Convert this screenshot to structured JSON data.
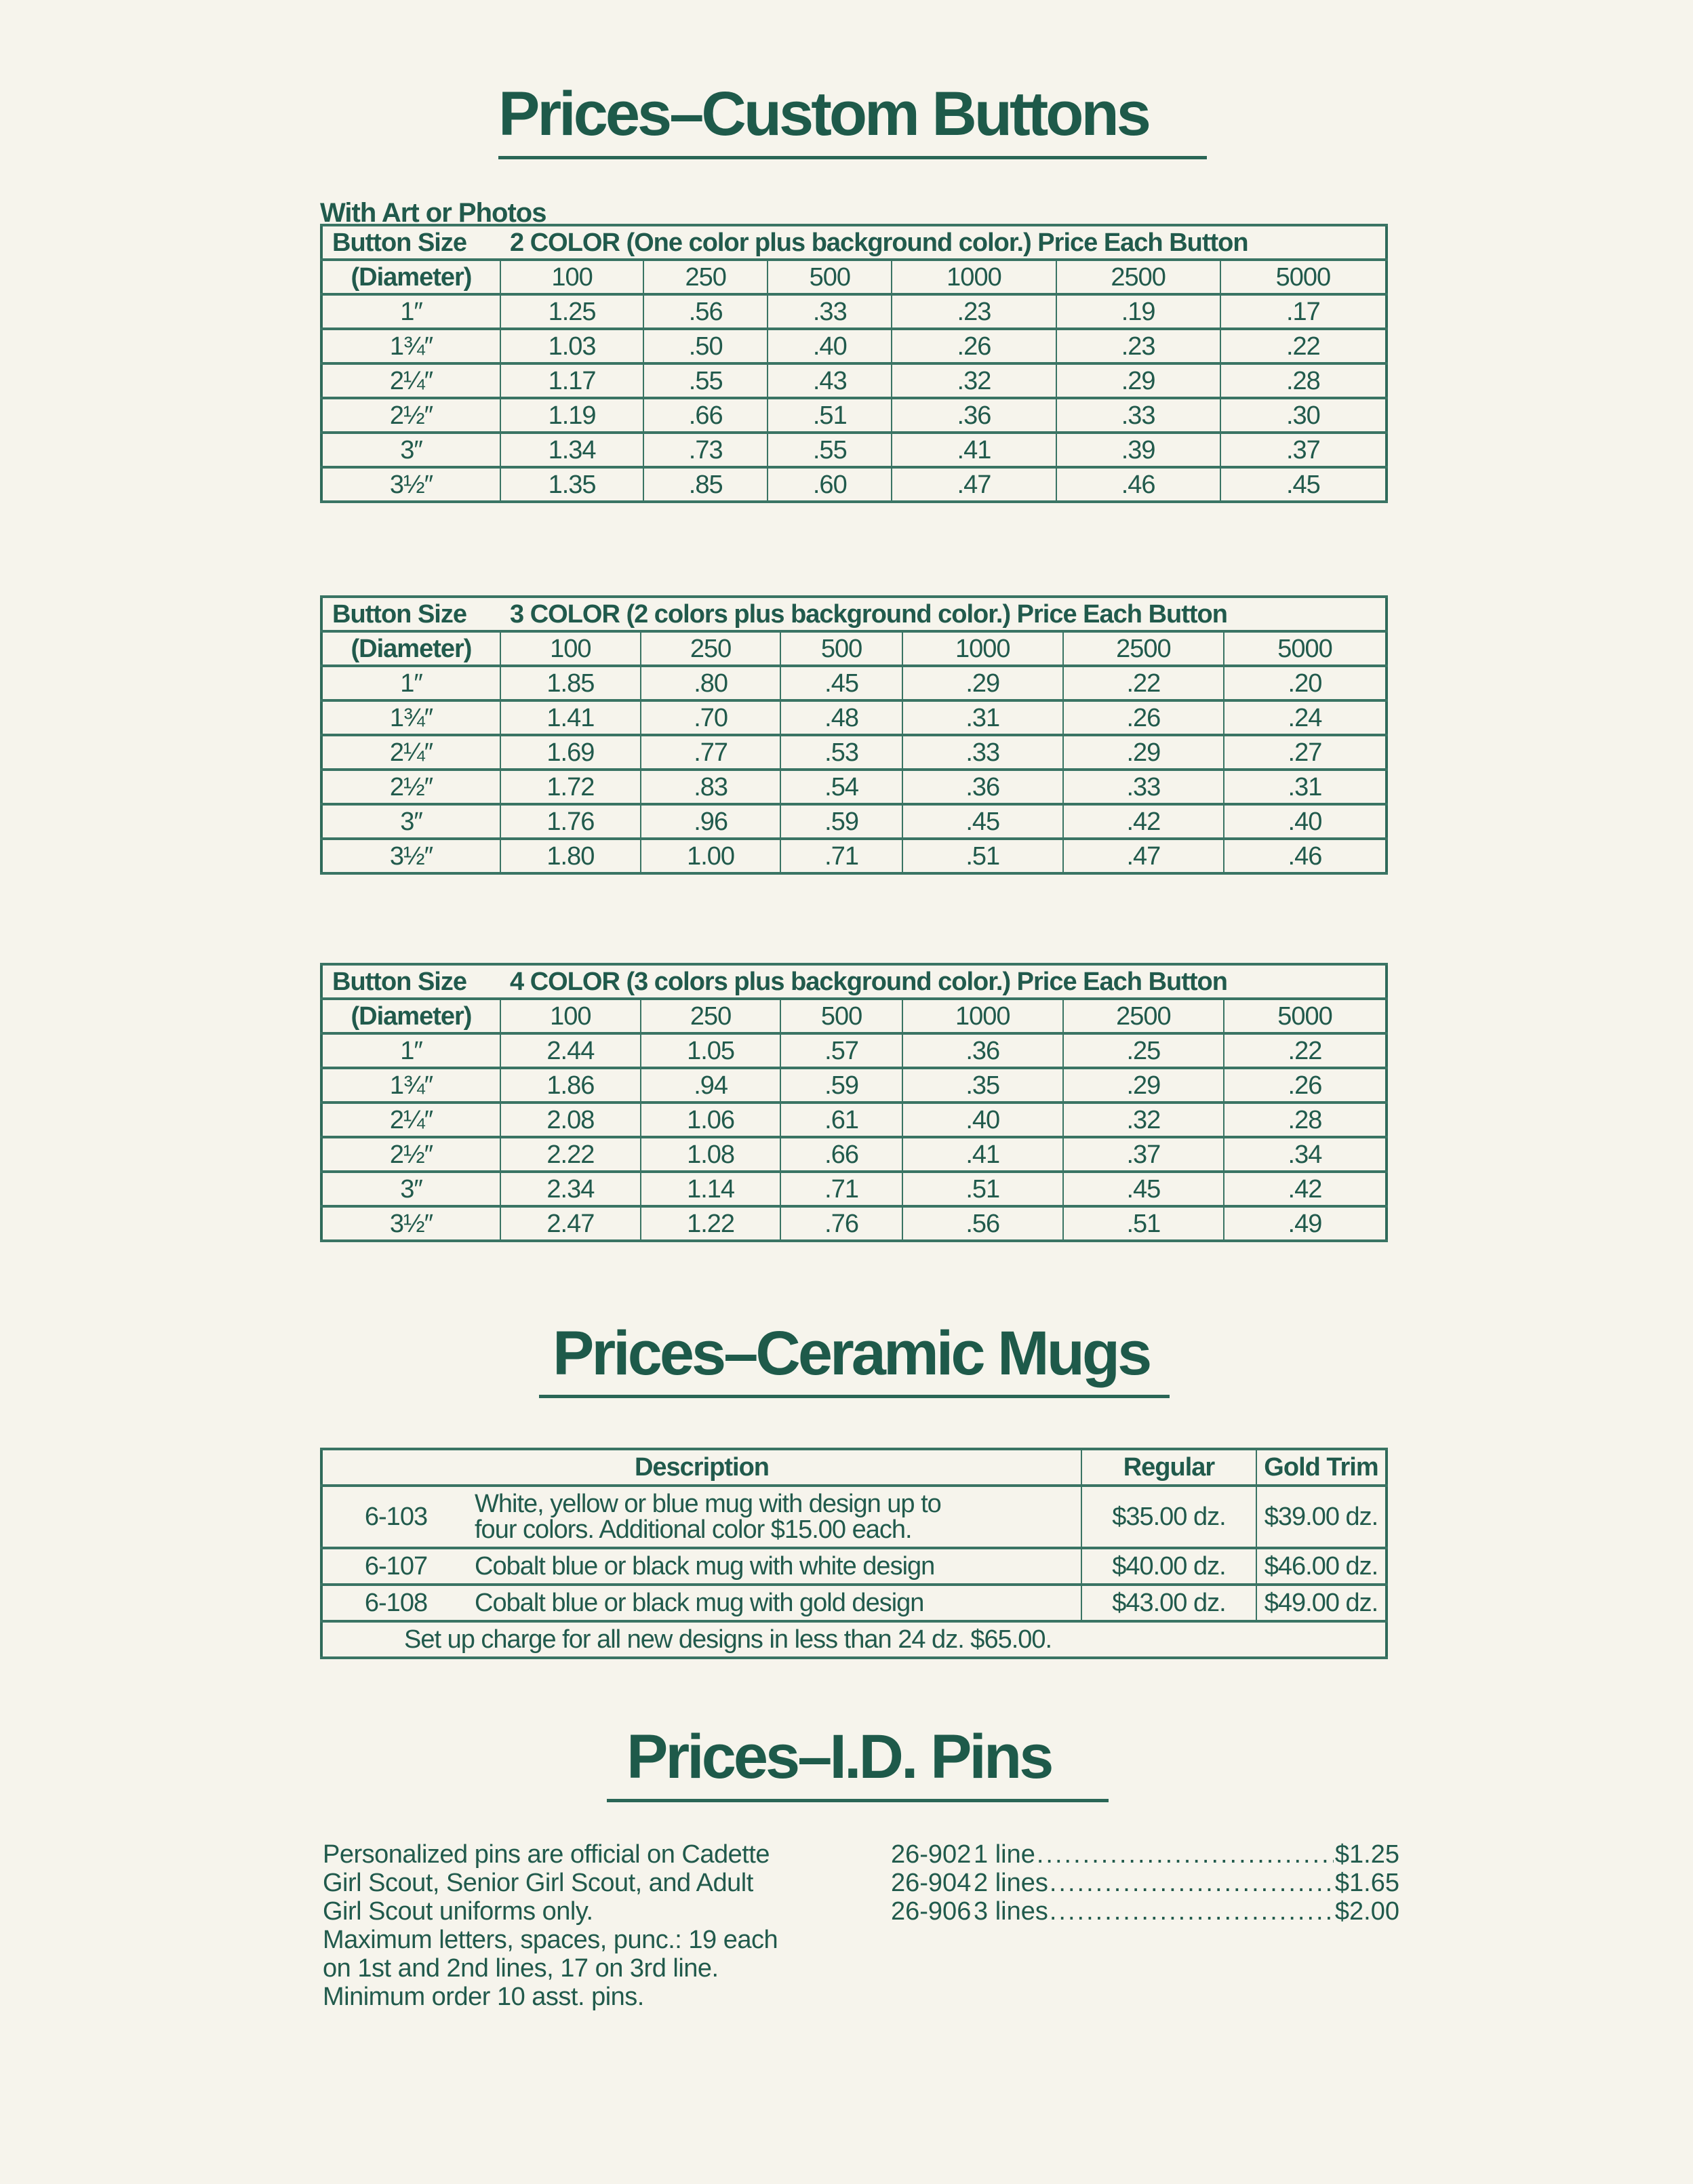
{
  "colors": {
    "ink": "#215a4c",
    "paper": "#f6f4ec",
    "rule": "#2a6656"
  },
  "buttons": {
    "title": "Prices–Custom Buttons",
    "subtitle": "With Art or Photos",
    "size_label": "Button Size",
    "diameter_label": "(Diameter)",
    "quantities": [
      "100",
      "250",
      "500",
      "1000",
      "2500",
      "5000"
    ],
    "tables": [
      {
        "heading": "2 COLOR (One color plus background color.) Price Each Button",
        "rows": [
          {
            "size": "1″",
            "prices": [
              "1.25",
              ".56",
              ".33",
              ".23",
              ".19",
              ".17"
            ]
          },
          {
            "size": "1¾″",
            "prices": [
              "1.03",
              ".50",
              ".40",
              ".26",
              ".23",
              ".22"
            ]
          },
          {
            "size": "2¼″",
            "prices": [
              "1.17",
              ".55",
              ".43",
              ".32",
              ".29",
              ".28"
            ]
          },
          {
            "size": "2½″",
            "prices": [
              "1.19",
              ".66",
              ".51",
              ".36",
              ".33",
              ".30"
            ]
          },
          {
            "size": "3″",
            "prices": [
              "1.34",
              ".73",
              ".55",
              ".41",
              ".39",
              ".37"
            ]
          },
          {
            "size": "3½″",
            "prices": [
              "1.35",
              ".85",
              ".60",
              ".47",
              ".46",
              ".45"
            ]
          }
        ]
      },
      {
        "heading": "3 COLOR (2 colors plus background color.) Price Each Button",
        "rows": [
          {
            "size": "1″",
            "prices": [
              "1.85",
              ".80",
              ".45",
              ".29",
              ".22",
              ".20"
            ]
          },
          {
            "size": "1¾″",
            "prices": [
              "1.41",
              ".70",
              ".48",
              ".31",
              ".26",
              ".24"
            ]
          },
          {
            "size": "2¼″",
            "prices": [
              "1.69",
              ".77",
              ".53",
              ".33",
              ".29",
              ".27"
            ]
          },
          {
            "size": "2½″",
            "prices": [
              "1.72",
              ".83",
              ".54",
              ".36",
              ".33",
              ".31"
            ]
          },
          {
            "size": "3″",
            "prices": [
              "1.76",
              ".96",
              ".59",
              ".45",
              ".42",
              ".40"
            ]
          },
          {
            "size": "3½″",
            "prices": [
              "1.80",
              "1.00",
              ".71",
              ".51",
              ".47",
              ".46"
            ]
          }
        ]
      },
      {
        "heading": "4 COLOR (3 colors plus background color.) Price Each Button",
        "rows": [
          {
            "size": "1″",
            "prices": [
              "2.44",
              "1.05",
              ".57",
              ".36",
              ".25",
              ".22"
            ]
          },
          {
            "size": "1¾″",
            "prices": [
              "1.86",
              ".94",
              ".59",
              ".35",
              ".29",
              ".26"
            ]
          },
          {
            "size": "2¼″",
            "prices": [
              "2.08",
              "1.06",
              ".61",
              ".40",
              ".32",
              ".28"
            ]
          },
          {
            "size": "2½″",
            "prices": [
              "2.22",
              "1.08",
              ".66",
              ".41",
              ".37",
              ".34"
            ]
          },
          {
            "size": "3″",
            "prices": [
              "2.34",
              "1.14",
              ".71",
              ".51",
              ".45",
              ".42"
            ]
          },
          {
            "size": "3½″",
            "prices": [
              "2.47",
              "1.22",
              ".76",
              ".56",
              ".51",
              ".49"
            ]
          }
        ]
      }
    ]
  },
  "mugs": {
    "title": "Prices–Ceramic Mugs",
    "headers": {
      "description": "Description",
      "regular": "Regular",
      "gold": "Gold Trim"
    },
    "rows": [
      {
        "code": "6-103",
        "desc_1": "White, yellow or blue mug with design up to",
        "desc_2": "four colors. Additional color $15.00 each.",
        "regular": "$35.00 dz.",
        "gold": "$39.00 dz."
      },
      {
        "code": "6-107",
        "desc_1": "Cobalt blue or black mug with white design",
        "desc_2": "",
        "regular": "$40.00 dz.",
        "gold": "$46.00 dz."
      },
      {
        "code": "6-108",
        "desc_1": "Cobalt blue or black mug with gold design",
        "desc_2": "",
        "regular": "$43.00 dz.",
        "gold": "$49.00 dz."
      }
    ],
    "setup_note": "Set up charge for all new designs in less than 24 dz. $65.00."
  },
  "pins": {
    "title": "Prices–I.D. Pins",
    "description": [
      "Personalized pins are official on Cadette",
      "Girl Scout, Senior Girl Scout, and Adult",
      "Girl Scout uniforms only.",
      "Maximum letters, spaces, punc.: 19 each",
      "on 1st and 2nd lines, 17 on 3rd line.",
      "Minimum order 10 asst. pins."
    ],
    "items": [
      {
        "code": "26-902",
        "label": "1 line",
        "price": "$1.25"
      },
      {
        "code": "26-904",
        "label": "2 lines",
        "price": "$1.65"
      },
      {
        "code": "26-906",
        "label": "3 lines",
        "price": "$2.00"
      }
    ]
  }
}
